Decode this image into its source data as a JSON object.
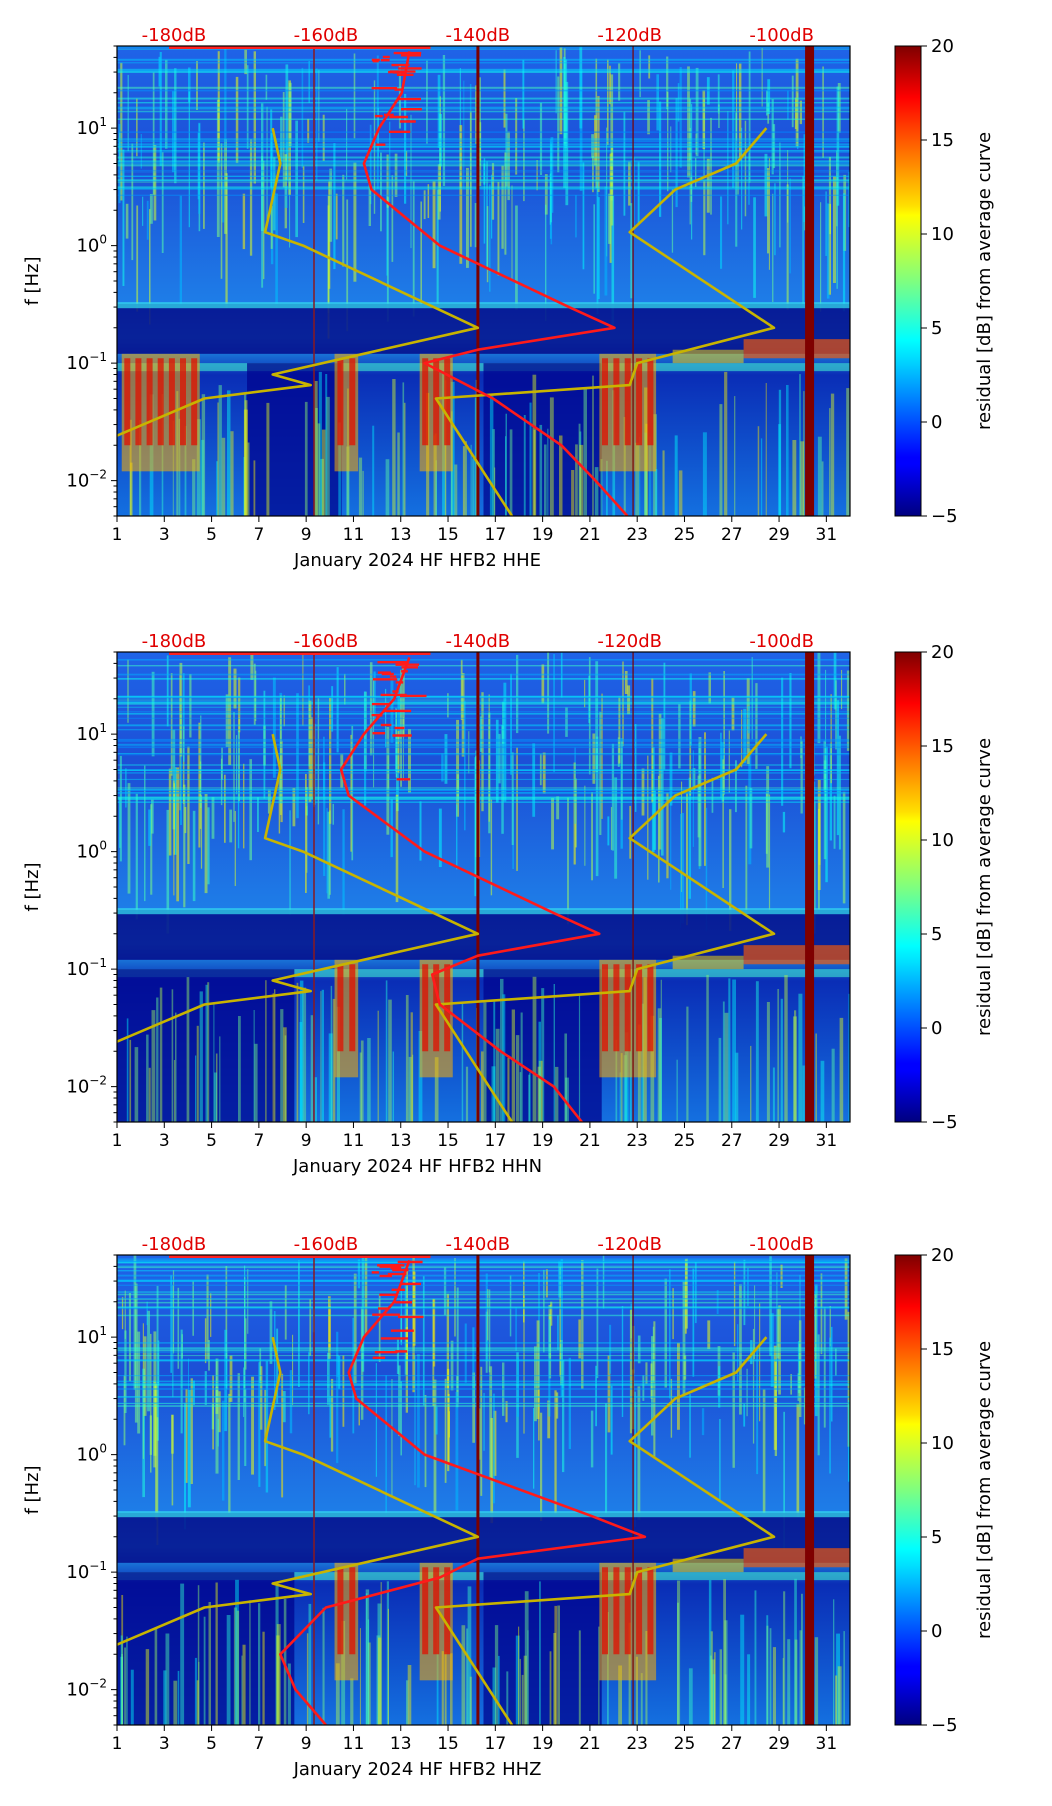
{
  "chart_data": [
    {
      "type": "heatmap",
      "xlabel": "January 2024 HF HFB2  HHE",
      "ylabel": "f [Hz]",
      "x_ticks": [
        "1",
        "3",
        "5",
        "7",
        "9",
        "11",
        "13",
        "15",
        "17",
        "19",
        "21",
        "23",
        "25",
        "27",
        "29",
        "31"
      ],
      "xlim": [
        1,
        32
      ],
      "ylim": [
        0.005,
        50
      ],
      "y_scale": "log",
      "y_ticks": [
        "10^-2",
        "10^-1",
        "10^0",
        "10^1"
      ],
      "top_ticks": [
        "-180dB",
        "-160dB",
        "-140dB",
        "-120dB",
        "-100dB"
      ],
      "colorbar": {
        "label": "residual [dB] from average curve",
        "min": -5,
        "max": 20,
        "ticks": [
          "−5",
          "0",
          "5",
          "10",
          "15",
          "20"
        ]
      },
      "quiet_bands": [
        [
          6.5,
          10.5
        ],
        [
          16.5,
          21.5
        ]
      ],
      "strong_events": [
        [
          1.2,
          4.5
        ],
        [
          10.2,
          11.2
        ],
        [
          13.8,
          15.2
        ],
        [
          21.4,
          23.8
        ]
      ],
      "overlay_red_median": [
        [
          0.005,
          -120.3
        ],
        [
          0.01,
          -124.5
        ],
        [
          0.02,
          -129
        ],
        [
          0.05,
          -138
        ],
        [
          0.1,
          -147
        ],
        [
          0.13,
          -140
        ],
        [
          0.2,
          -122
        ],
        [
          0.3,
          -128
        ],
        [
          1,
          -145
        ],
        [
          3,
          -154
        ],
        [
          5,
          -155
        ],
        [
          10,
          -153
        ],
        [
          20,
          -150
        ],
        [
          45,
          -149
        ]
      ],
      "overlay_yellow_min": [
        [
          0.005,
          -188.5
        ],
        [
          0.01,
          -189.5
        ],
        [
          0.02,
          -190.5
        ],
        [
          0.05,
          -176
        ],
        [
          0.065,
          -162
        ],
        [
          0.08,
          -167
        ],
        [
          0.2,
          -140
        ],
        [
          1,
          -163
        ],
        [
          1.3,
          -168
        ],
        [
          5,
          -166
        ],
        [
          10,
          -167
        ]
      ],
      "overlay_yellow_max": [
        [
          0.005,
          -135.5
        ],
        [
          0.05,
          -145.5
        ],
        [
          0.065,
          -120
        ],
        [
          0.1,
          -119
        ],
        [
          0.2,
          -101
        ],
        [
          1.3,
          -120
        ],
        [
          3,
          -114
        ],
        [
          5,
          -106
        ],
        [
          10,
          -102
        ]
      ],
      "red_line_ranges": [
        [
          3.2,
          5.8
        ]
      ]
    },
    {
      "type": "heatmap",
      "xlabel": "January 2024 HF HFB2  HHN",
      "ylabel": "f [Hz]",
      "x_ticks": [
        "1",
        "3",
        "5",
        "7",
        "9",
        "11",
        "13",
        "15",
        "17",
        "19",
        "21",
        "23",
        "25",
        "27",
        "29",
        "31"
      ],
      "xlim": [
        1,
        32
      ],
      "ylim": [
        0.005,
        50
      ],
      "y_scale": "log",
      "y_ticks": [
        "10^-2",
        "10^-1",
        "10^0",
        "10^1"
      ],
      "top_ticks": [
        "-180dB",
        "-160dB",
        "-140dB",
        "-120dB",
        "-100dB"
      ],
      "colorbar": {
        "label": "residual [dB] from average curve",
        "min": -5,
        "max": 20,
        "ticks": [
          "−5",
          "0",
          "5",
          "10",
          "15",
          "20"
        ]
      },
      "quiet_bands": [
        [
          1,
          8.5
        ],
        [
          16.5,
          21.5
        ]
      ],
      "strong_events": [
        [
          10.2,
          11.2
        ],
        [
          13.8,
          15.2
        ],
        [
          21.4,
          23.8
        ]
      ],
      "overlay_red_median": [
        [
          0.005,
          -126.3
        ],
        [
          0.01,
          -130
        ],
        [
          0.02,
          -137
        ],
        [
          0.05,
          -145
        ],
        [
          0.09,
          -146
        ],
        [
          0.13,
          -140
        ],
        [
          0.2,
          -124
        ],
        [
          0.3,
          -130
        ],
        [
          1,
          -147
        ],
        [
          3,
          -157
        ],
        [
          5,
          -158
        ],
        [
          10,
          -155
        ],
        [
          20,
          -151
        ],
        [
          45,
          -149
        ]
      ],
      "overlay_yellow_min": [
        [
          0.005,
          -188.5
        ],
        [
          0.01,
          -189.5
        ],
        [
          0.02,
          -190.5
        ],
        [
          0.05,
          -176
        ],
        [
          0.065,
          -162
        ],
        [
          0.08,
          -167
        ],
        [
          0.2,
          -140
        ],
        [
          1,
          -163
        ],
        [
          1.3,
          -168
        ],
        [
          5,
          -166
        ],
        [
          10,
          -167
        ]
      ],
      "overlay_yellow_max": [
        [
          0.005,
          -135.5
        ],
        [
          0.05,
          -145.5
        ],
        [
          0.065,
          -120
        ],
        [
          0.1,
          -119
        ],
        [
          0.2,
          -101
        ],
        [
          1.3,
          -120
        ],
        [
          3,
          -114
        ],
        [
          5,
          -106
        ],
        [
          10,
          -102
        ]
      ],
      "red_line_ranges": [
        [
          3.2,
          5.8
        ]
      ]
    },
    {
      "type": "heatmap",
      "xlabel": "January 2024 HF HFB2  HHZ",
      "ylabel": "f [Hz]",
      "x_ticks": [
        "1",
        "3",
        "5",
        "7",
        "9",
        "11",
        "13",
        "15",
        "17",
        "19",
        "21",
        "23",
        "25",
        "27",
        "29",
        "31"
      ],
      "xlim": [
        1,
        32
      ],
      "ylim": [
        0.005,
        50
      ],
      "y_scale": "log",
      "y_ticks": [
        "10^-2",
        "10^-1",
        "10^0",
        "10^1"
      ],
      "top_ticks": [
        "-180dB",
        "-160dB",
        "-140dB",
        "-120dB",
        "-100dB"
      ],
      "colorbar": {
        "label": "residual [dB] from average curve",
        "min": -5,
        "max": 20,
        "ticks": [
          "−5",
          "0",
          "5",
          "10",
          "15",
          "20"
        ]
      },
      "quiet_bands": [
        [
          1,
          8.5
        ],
        [
          16.5,
          21.5
        ]
      ],
      "strong_events": [
        [
          10.2,
          11.2
        ],
        [
          13.8,
          15.2
        ],
        [
          21.4,
          23.8
        ]
      ],
      "overlay_red_median": [
        [
          0.005,
          -160
        ],
        [
          0.01,
          -164
        ],
        [
          0.02,
          -166
        ],
        [
          0.05,
          -160
        ],
        [
          0.09,
          -145
        ],
        [
          0.13,
          -140
        ],
        [
          0.2,
          -118
        ],
        [
          0.3,
          -125
        ],
        [
          1,
          -147
        ],
        [
          3,
          -156
        ],
        [
          5,
          -157
        ],
        [
          10,
          -155
        ],
        [
          20,
          -151
        ],
        [
          45,
          -149
        ]
      ],
      "overlay_yellow_min": [
        [
          0.005,
          -188.5
        ],
        [
          0.01,
          -189.5
        ],
        [
          0.02,
          -190.5
        ],
        [
          0.05,
          -176
        ],
        [
          0.065,
          -162
        ],
        [
          0.08,
          -167
        ],
        [
          0.2,
          -140
        ],
        [
          1,
          -163
        ],
        [
          1.3,
          -168
        ],
        [
          5,
          -166
        ],
        [
          10,
          -167
        ]
      ],
      "overlay_yellow_max": [
        [
          0.005,
          -135.5
        ],
        [
          0.05,
          -145.5
        ],
        [
          0.065,
          -120
        ],
        [
          0.1,
          -119
        ],
        [
          0.2,
          -101
        ],
        [
          1.3,
          -120
        ],
        [
          3,
          -114
        ],
        [
          5,
          -106
        ],
        [
          10,
          -102
        ]
      ],
      "red_line_ranges": [
        [
          3.2,
          5.8
        ]
      ]
    }
  ]
}
